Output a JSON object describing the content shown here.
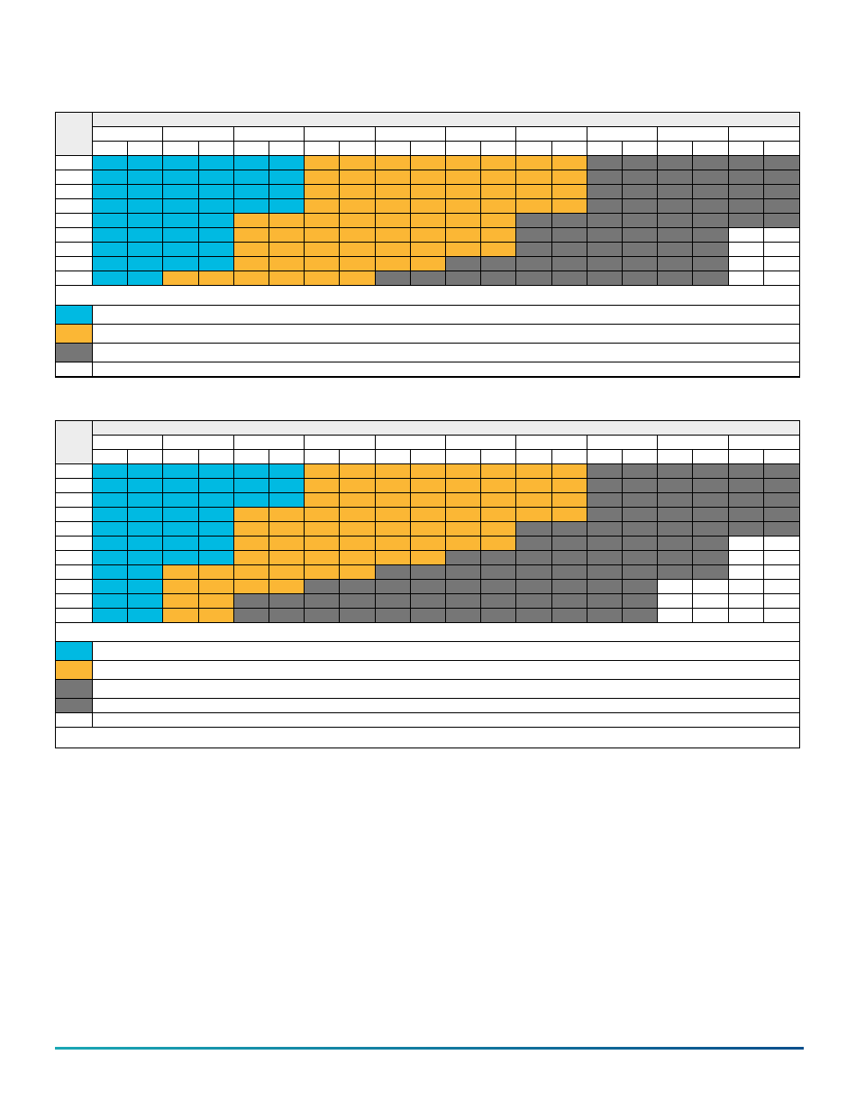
{
  "colors": {
    "blue": "#00bae2",
    "orange": "#fbb735",
    "gray": "#767676",
    "white": "#ffffff",
    "header": "#ededed",
    "line": "#000000",
    "footer_start": "#1aa7b4",
    "footer_end": "#0b4f8c"
  },
  "grids": [
    {
      "id": "grid-1",
      "column_groups": 10,
      "sub_columns": 20,
      "rows": [
        [
          "B",
          "B",
          "B",
          "B",
          "B",
          "B",
          "O",
          "O",
          "O",
          "O",
          "O",
          "O",
          "O",
          "O",
          "G",
          "G",
          "G",
          "G",
          "G",
          "G"
        ],
        [
          "B",
          "B",
          "B",
          "B",
          "B",
          "B",
          "O",
          "O",
          "O",
          "O",
          "O",
          "O",
          "O",
          "O",
          "G",
          "G",
          "G",
          "G",
          "G",
          "G"
        ],
        [
          "B",
          "B",
          "B",
          "B",
          "B",
          "B",
          "O",
          "O",
          "O",
          "O",
          "O",
          "O",
          "O",
          "O",
          "G",
          "G",
          "G",
          "G",
          "G",
          "G"
        ],
        [
          "B",
          "B",
          "B",
          "B",
          "B",
          "B",
          "O",
          "O",
          "O",
          "O",
          "O",
          "O",
          "O",
          "O",
          "G",
          "G",
          "G",
          "G",
          "G",
          "G"
        ],
        [
          "B",
          "B",
          "B",
          "B",
          "O",
          "O",
          "O",
          "O",
          "O",
          "O",
          "O",
          "O",
          "G",
          "G",
          "G",
          "G",
          "G",
          "G",
          "G",
          "G"
        ],
        [
          "B",
          "B",
          "B",
          "B",
          "O",
          "O",
          "O",
          "O",
          "O",
          "O",
          "O",
          "O",
          "G",
          "G",
          "G",
          "G",
          "G",
          "G",
          "W",
          "W"
        ],
        [
          "B",
          "B",
          "B",
          "B",
          "O",
          "O",
          "O",
          "O",
          "O",
          "O",
          "O",
          "O",
          "G",
          "G",
          "G",
          "G",
          "G",
          "G",
          "W",
          "W"
        ],
        [
          "B",
          "B",
          "B",
          "B",
          "O",
          "O",
          "O",
          "O",
          "O",
          "O",
          "G",
          "G",
          "G",
          "G",
          "G",
          "G",
          "G",
          "G",
          "W",
          "W"
        ],
        [
          "B",
          "B",
          "O",
          "O",
          "O",
          "O",
          "O",
          "O",
          "G",
          "G",
          "G",
          "G",
          "G",
          "G",
          "G",
          "G",
          "G",
          "G",
          "W",
          "W"
        ]
      ],
      "legend": [
        "B",
        "O",
        "G",
        "W"
      ]
    },
    {
      "id": "grid-2",
      "column_groups": 10,
      "sub_columns": 20,
      "rows": [
        [
          "B",
          "B",
          "B",
          "B",
          "B",
          "B",
          "O",
          "O",
          "O",
          "O",
          "O",
          "O",
          "O",
          "O",
          "G",
          "G",
          "G",
          "G",
          "G",
          "G"
        ],
        [
          "B",
          "B",
          "B",
          "B",
          "B",
          "B",
          "O",
          "O",
          "O",
          "O",
          "O",
          "O",
          "O",
          "O",
          "G",
          "G",
          "G",
          "G",
          "G",
          "G"
        ],
        [
          "B",
          "B",
          "B",
          "B",
          "B",
          "B",
          "O",
          "O",
          "O",
          "O",
          "O",
          "O",
          "O",
          "O",
          "G",
          "G",
          "G",
          "G",
          "G",
          "G"
        ],
        [
          "B",
          "B",
          "B",
          "B",
          "O",
          "O",
          "O",
          "O",
          "O",
          "O",
          "O",
          "O",
          "O",
          "O",
          "G",
          "G",
          "G",
          "G",
          "G",
          "G"
        ],
        [
          "B",
          "B",
          "B",
          "B",
          "O",
          "O",
          "O",
          "O",
          "O",
          "O",
          "O",
          "O",
          "G",
          "G",
          "G",
          "G",
          "G",
          "G",
          "G",
          "G"
        ],
        [
          "B",
          "B",
          "B",
          "B",
          "O",
          "O",
          "O",
          "O",
          "O",
          "O",
          "O",
          "O",
          "G",
          "G",
          "G",
          "G",
          "G",
          "G",
          "W",
          "W"
        ],
        [
          "B",
          "B",
          "B",
          "B",
          "O",
          "O",
          "O",
          "O",
          "O",
          "O",
          "G",
          "G",
          "G",
          "G",
          "G",
          "G",
          "G",
          "G",
          "W",
          "W"
        ],
        [
          "B",
          "B",
          "O",
          "O",
          "O",
          "O",
          "O",
          "O",
          "G",
          "G",
          "G",
          "G",
          "G",
          "G",
          "G",
          "G",
          "G",
          "G",
          "W",
          "W"
        ],
        [
          "B",
          "B",
          "O",
          "O",
          "O",
          "O",
          "G",
          "G",
          "G",
          "G",
          "G",
          "G",
          "G",
          "G",
          "G",
          "G",
          "W",
          "W",
          "W",
          "W"
        ],
        [
          "B",
          "B",
          "O",
          "O",
          "G",
          "G",
          "G",
          "G",
          "G",
          "G",
          "G",
          "G",
          "G",
          "G",
          "G",
          "G",
          "W",
          "W",
          "W",
          "W"
        ],
        [
          "B",
          "B",
          "O",
          "O",
          "G",
          "G",
          "G",
          "G",
          "G",
          "G",
          "G",
          "G",
          "G",
          "G",
          "G",
          "G",
          "W",
          "W",
          "W",
          "W"
        ]
      ],
      "legend": [
        "B",
        "O",
        "G",
        "G",
        "W"
      ]
    }
  ]
}
